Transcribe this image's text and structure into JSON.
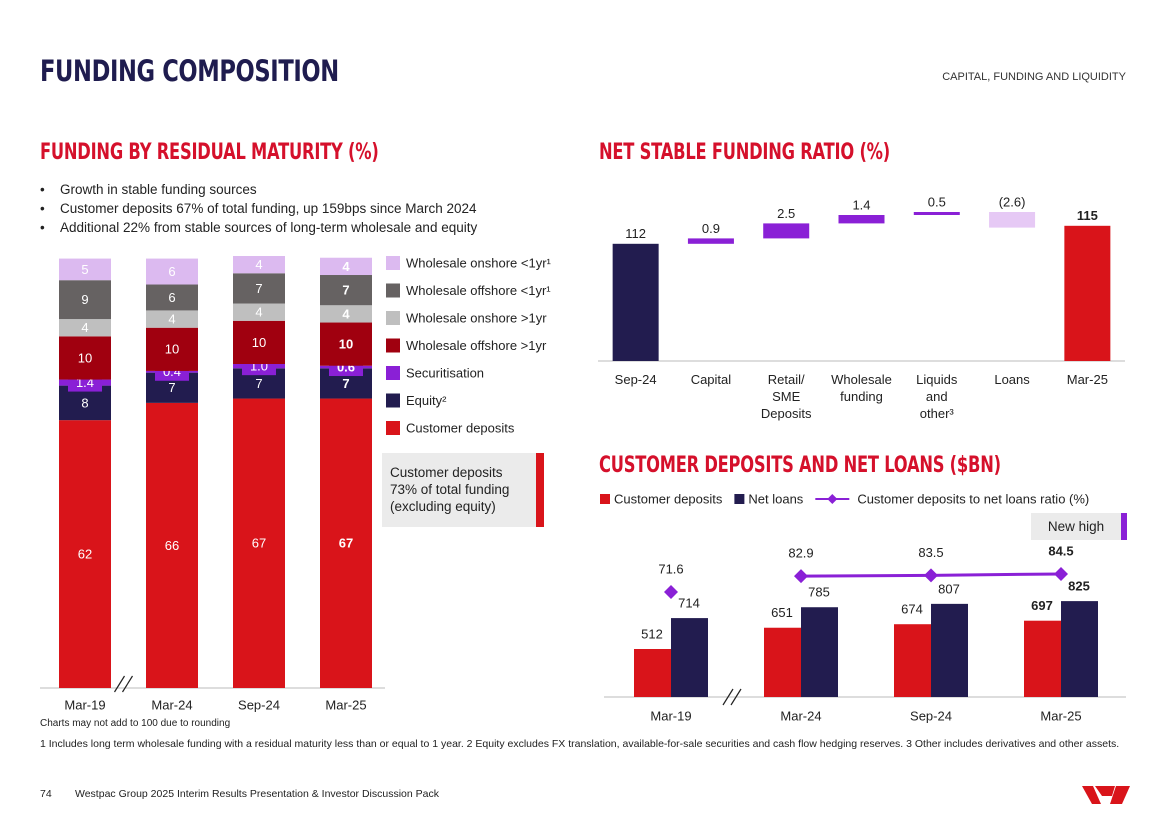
{
  "header": {
    "title": "FUNDING COMPOSITION",
    "section": "CAPITAL, FUNDING AND LIQUIDITY"
  },
  "chart_data": [
    {
      "type": "stacked_bar",
      "title": "FUNDING BY RESIDUAL MATURITY (%)",
      "bullets": [
        "Growth in stable funding sources",
        "Customer deposits 67% of total funding, up 159bps since March 2024",
        "Additional 22% from stable sources of long-term wholesale and equity"
      ],
      "categories": [
        "Mar-19",
        "Mar-24",
        "Sep-24",
        "Mar-25"
      ],
      "series": [
        {
          "name": "Customer deposits",
          "color": "#d9141a",
          "values": [
            62,
            66,
            67,
            67
          ]
        },
        {
          "name": "Equity²",
          "color": "#221c4f",
          "values": [
            8,
            7,
            7,
            7
          ]
        },
        {
          "name": "Securitisation",
          "color": "#8a20d6",
          "values": [
            1.4,
            0.4,
            1.0,
            0.6
          ],
          "value_labels": [
            "1.4",
            "0.4",
            "1.0",
            "0.6"
          ]
        },
        {
          "name": "Wholesale offshore >1yr",
          "color": "#a0000f",
          "values": [
            10,
            10,
            10,
            10
          ]
        },
        {
          "name": "Wholesale onshore >1yr",
          "color": "#bfbfbf",
          "values": [
            4,
            4,
            4,
            4
          ]
        },
        {
          "name": "Wholesale offshore <1yr¹",
          "color": "#666262",
          "values": [
            9,
            6,
            7,
            7
          ]
        },
        {
          "name": "Wholesale onshore <1yr¹",
          "color": "#dcbaf0",
          "values": [
            5,
            6,
            4,
            4
          ]
        }
      ],
      "annotation": "Customer deposits 73% of total funding (excluding equity)",
      "note": "Charts may not add to 100 due to rounding",
      "axis_break_after": 0
    },
    {
      "type": "waterfall",
      "title": "NET STABLE FUNDING RATIO (%)",
      "categories": [
        "Sep-24",
        "Capital",
        "Retail/\nSME\nDeposits",
        "Wholesale\nfunding",
        "Liquids\nand\nother³",
        "Loans",
        "Mar-25"
      ],
      "values": [
        112,
        0.9,
        2.5,
        1.4,
        0.5,
        -2.6,
        115
      ],
      "value_labels": [
        "112",
        "0.9",
        "2.5",
        "1.4",
        "0.5",
        "(2.6)",
        "115"
      ],
      "colors": [
        "#221c4f",
        "#8a20d6",
        "#8a20d6",
        "#8a20d6",
        "#8a20d6",
        "#e6c9f5",
        "#d9141a"
      ]
    },
    {
      "type": "bar_line",
      "title": "CUSTOMER DEPOSITS AND NET LOANS ($BN)",
      "categories": [
        "Mar-19",
        "Mar-24",
        "Sep-24",
        "Mar-25"
      ],
      "series": [
        {
          "name": "Customer deposits",
          "color": "#d9141a",
          "values": [
            512,
            651,
            674,
            697
          ]
        },
        {
          "name": "Net loans",
          "color": "#221c4f",
          "values": [
            714,
            785,
            807,
            825
          ]
        },
        {
          "name": "Customer deposits to net loans ratio (%)",
          "color": "#8a20d6",
          "values": [
            71.6,
            82.9,
            83.5,
            84.5
          ],
          "axis": "y2"
        }
      ],
      "annotation": "New high",
      "axis_break_after": 0
    }
  ],
  "footnotes": "1 Includes long term wholesale funding with a residual maturity less than or equal to 1 year. 2 Equity excludes FX translation, available-for-sale securities and cash flow hedging reserves. 3 Other includes derivatives and other assets.",
  "footer": {
    "page": "74",
    "text": "Westpac Group 2025 Interim Results Presentation & Investor Discussion Pack"
  }
}
